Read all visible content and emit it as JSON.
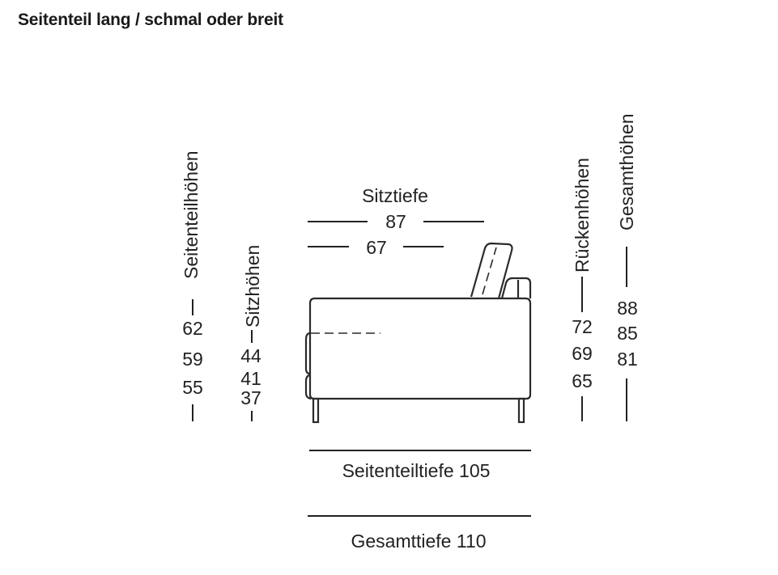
{
  "title": "Seitenteil lang / schmal oder breit",
  "labels": {
    "seitenteilhoehen": "Seitenteilhöhen",
    "sitzhoehen": "Sitzhöhen",
    "sitztiefe": "Sitztiefe",
    "rueckenhoehen": "Rückenhöhen",
    "gesamthoehen": "Gesamthöhen",
    "seitenteiltiefe": "Seitenteiltiefe 105",
    "gesamttiefe": "Gesamttiefe 110"
  },
  "values": {
    "seitenteilhoehen": [
      "62",
      "59",
      "55"
    ],
    "sitzhoehen": [
      "44",
      "41",
      "37"
    ],
    "sitztiefe": [
      "87",
      "67"
    ],
    "rueckenhoehen": [
      "72",
      "69",
      "65"
    ],
    "gesamthoehen": [
      "88",
      "85",
      "81"
    ]
  }
}
